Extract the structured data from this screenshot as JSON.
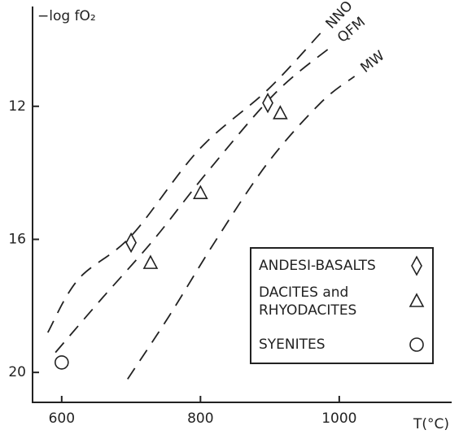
{
  "chart_data": {
    "type": "scatter",
    "y_label": "−log fO₂",
    "x_label": "T(°C)",
    "xlim": [
      558,
      1162
    ],
    "ylim": [
      20.9,
      9
    ],
    "xticks": [
      600,
      800,
      1000
    ],
    "yticks": [
      12,
      16,
      20
    ],
    "curves": [
      {
        "name": "NNO",
        "x": [
          580,
          624,
          700,
          798,
          897,
          973
        ],
        "values": [
          18.8,
          17.2,
          15.9,
          13.3,
          11.5,
          9.8
        ]
      },
      {
        "name": "QFM",
        "x": [
          591,
          657,
          733,
          809,
          908,
          989
        ],
        "values": [
          19.4,
          17.8,
          16.0,
          14.0,
          11.6,
          10.2
        ]
      },
      {
        "name": "MW",
        "x": [
          695,
          755,
          820,
          897,
          973,
          1022
        ],
        "values": [
          20.2,
          18.3,
          16.1,
          13.7,
          11.9,
          11.1
        ]
      }
    ],
    "series": [
      {
        "name": "ANDESI-BASALTS",
        "marker": "diamond",
        "x": [
          700,
          897
        ],
        "values": [
          16.1,
          11.9
        ]
      },
      {
        "name": "DACITES and RHYODACITES",
        "marker": "triangle",
        "x": [
          728,
          800,
          915
        ],
        "values": [
          16.7,
          14.6,
          12.2
        ]
      },
      {
        "name": "SYENITES",
        "marker": "circle",
        "x": [
          600
        ],
        "values": [
          19.7
        ]
      }
    ]
  }
}
